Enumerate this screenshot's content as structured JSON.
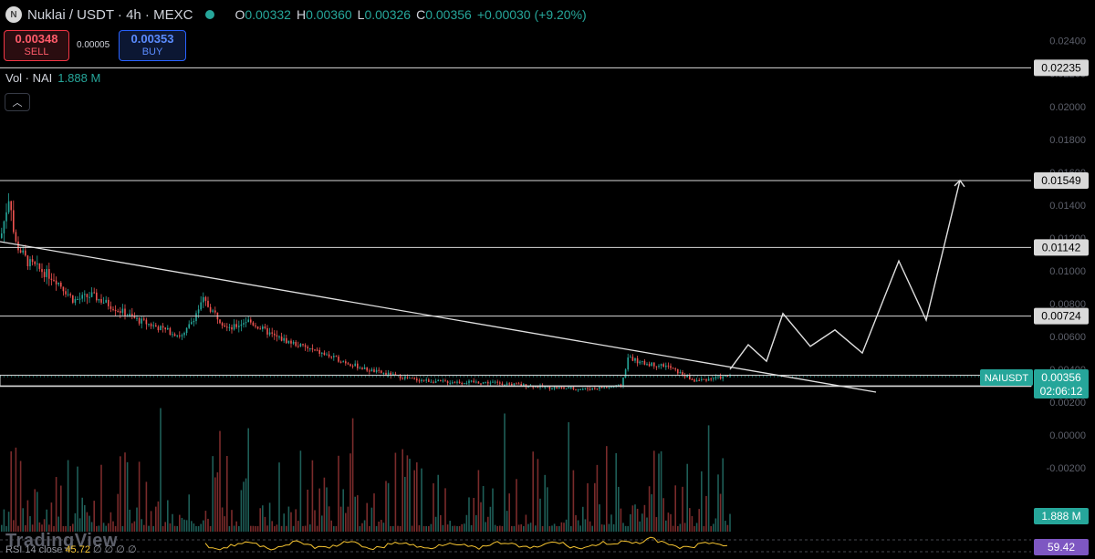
{
  "header": {
    "symbol_title": "Nuklai / USDT · 4h · MEXC",
    "ohlc": [
      {
        "k": "O",
        "v": "0.00332"
      },
      {
        "k": "H",
        "v": "0.00360"
      },
      {
        "k": "L",
        "v": "0.00326"
      },
      {
        "k": "C",
        "v": "0.00356"
      }
    ],
    "change": "+0.00030 (+9.20%)"
  },
  "trade": {
    "sell_price": "0.00348",
    "sell_label": "SELL",
    "spread": "0.00005",
    "buy_price": "0.00353",
    "buy_label": "BUY"
  },
  "volume_legend": {
    "label": "Vol · NAI",
    "value": "1.888 M"
  },
  "watermark": "TradingView",
  "rsi_legend": {
    "label": "RSI 14 close",
    "value": "45.72",
    "extra": "∅ ∅ ∅ ∅"
  },
  "price_axis_ticks": [
    "0.02400",
    "0.02200",
    "0.02000",
    "0.01800",
    "0.01600",
    "0.01400",
    "0.01200",
    "0.01000",
    "0.00800",
    "0.00600",
    "0.00400",
    "0.00200",
    "0.00000",
    "-0.00200"
  ],
  "horizontal_levels": [
    "0.02235",
    "0.01549",
    "0.01142",
    "0.00724",
    "0.00298"
  ],
  "current_price": {
    "symbol": "NAIUSDT",
    "price": "0.00356",
    "countdown": "02:06:12"
  },
  "volume_badge": "1.888 M",
  "rsi_badge": "59.42",
  "colors": {
    "up": "#26a69a",
    "down": "#ef5350",
    "background": "#000000",
    "rsi_line": "#f7c531",
    "rsi_badge": "#7e57c2"
  },
  "chart_data": {
    "type": "candlestick",
    "horizontal_levels": [
      0.02235,
      0.01549,
      0.01142,
      0.00724,
      0.00298
    ],
    "current_price": 0.00356,
    "trendline": {
      "from": [
        0,
        0.0112
      ],
      "to": [
        960,
        0.0031
      ]
    },
    "projection_path": [
      [
        800,
        0.004
      ],
      [
        820,
        0.0055
      ],
      [
        840,
        0.0045
      ],
      [
        858,
        0.0074
      ],
      [
        888,
        0.0054
      ],
      [
        915,
        0.0064
      ],
      [
        945,
        0.005
      ],
      [
        985,
        0.0106
      ],
      [
        1015,
        0.007
      ],
      [
        1052,
        0.0155
      ]
    ]
  }
}
